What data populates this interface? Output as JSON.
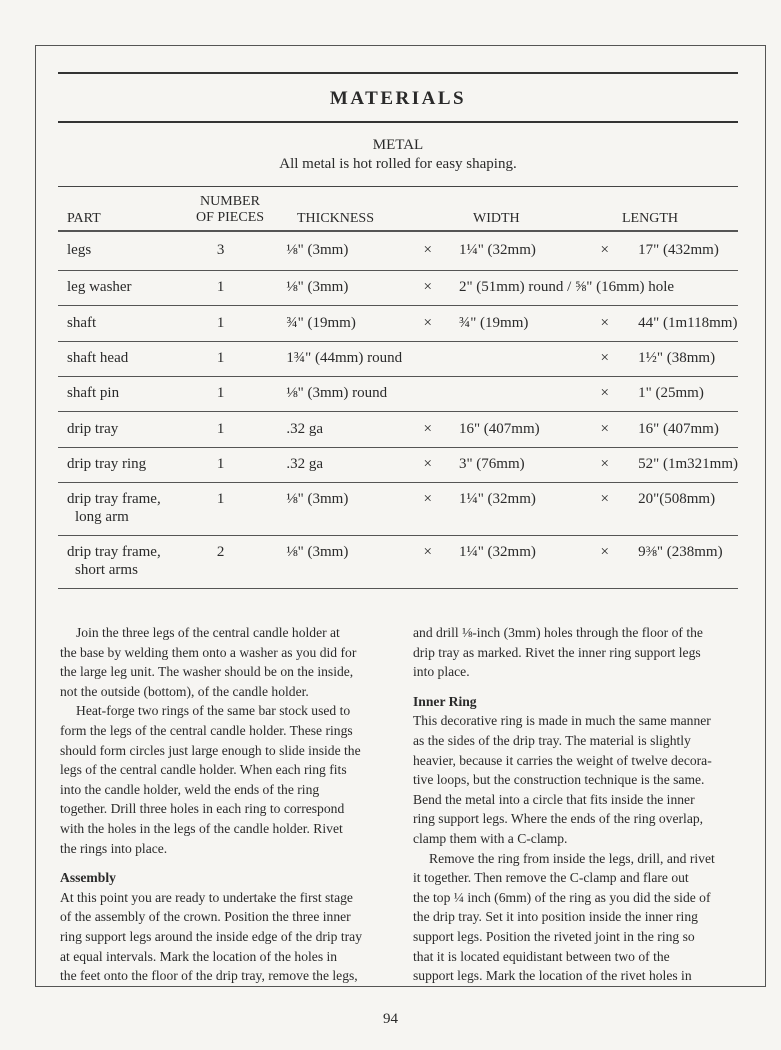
{
  "heading": "MATERIALS",
  "section": "METAL",
  "note": "All metal is hot rolled for easy shaping.",
  "columns": {
    "part": "PART",
    "pieces": [
      "NUMBER",
      "OF PIECES"
    ],
    "thickness": "THICKNESS",
    "width": "WIDTH",
    "length": "LENGTH"
  },
  "times_symbol": "×",
  "rows": [
    {
      "part": [
        "legs"
      ],
      "pieces": "3",
      "thickness": "⅛\" (3mm)",
      "x1": true,
      "width": "1¼\" (32mm)",
      "x2": true,
      "length": "17\" (432mm)"
    },
    {
      "part": [
        "leg washer"
      ],
      "pieces": "1",
      "thickness": "⅛\" (3mm)",
      "x1": true,
      "width": "2\" (51mm) round / ⅝\" (16mm) hole",
      "x2": false,
      "length": ""
    },
    {
      "part": [
        "shaft"
      ],
      "pieces": "1",
      "thickness": "¾\" (19mm)",
      "x1": true,
      "width": "¾\" (19mm)",
      "x2": true,
      "length": "44\" (1m118mm)"
    },
    {
      "part": [
        "shaft head"
      ],
      "pieces": "1",
      "thickness": "1¾\" (44mm) round",
      "x1": false,
      "width": "",
      "x2": true,
      "length": "1½\" (38mm)"
    },
    {
      "part": [
        "shaft pin"
      ],
      "pieces": "1",
      "thickness": "⅛\" (3mm) round",
      "x1": false,
      "width": "",
      "x2": true,
      "length": "1\" (25mm)"
    },
    {
      "part": [
        "drip tray"
      ],
      "pieces": "1",
      "thickness": ".32 ga",
      "x1": true,
      "width": "16\" (407mm)",
      "x2": true,
      "length": "16\" (407mm)"
    },
    {
      "part": [
        "drip tray ring"
      ],
      "pieces": "1",
      "thickness": ".32 ga",
      "x1": true,
      "width": "3\" (76mm)",
      "x2": true,
      "length": "52\" (1m321mm)"
    },
    {
      "part": [
        "drip tray frame,",
        "long arm"
      ],
      "pieces": "1",
      "thickness": "⅛\" (3mm)",
      "x1": true,
      "width": "1¼\" (32mm)",
      "x2": true,
      "length": "20\"(508mm)"
    },
    {
      "part": [
        "drip tray frame,",
        "short arms"
      ],
      "pieces": "2",
      "thickness": "⅛\" (3mm)",
      "x1": true,
      "width": "1¼\" (32mm)",
      "x2": true,
      "length": "9⅜\" (238mm)"
    }
  ],
  "left_column": [
    {
      "type": "p",
      "lines": [
        "Join the three legs of the central candle holder at",
        "the base by welding them onto a washer as you did for",
        "the large leg unit. The washer should be on the inside,",
        "not the outside (bottom), of the candle holder."
      ]
    },
    {
      "type": "p",
      "lines": [
        "Heat-forge two rings of the same bar stock used to",
        "form the legs of the central candle holder. These rings",
        "should form circles just large enough to slide inside the",
        "legs of the central candle holder. When each ring fits",
        "into the candle holder, weld the ends of the ring",
        "together. Drill three holes in each ring to correspond",
        "with the holes in the legs of the candle holder. Rivet",
        "the rings into place."
      ]
    },
    {
      "type": "h",
      "lines": [
        "Assembly"
      ]
    },
    {
      "type": "p0",
      "lines": [
        "At this point you are ready to undertake the first stage",
        "of the assembly of the crown. Position the three inner",
        "ring support legs around the inside edge of the drip tray",
        "at equal intervals. Mark the location of the holes in",
        "the feet onto the floor of the drip tray, remove the legs,"
      ]
    }
  ],
  "right_column": [
    {
      "type": "p0",
      "lines": [
        "and drill ⅛-inch (3mm) holes through the floor of the",
        "drip tray as marked. Rivet the inner ring support legs",
        "into place."
      ]
    },
    {
      "type": "h",
      "lines": [
        "Inner Ring"
      ]
    },
    {
      "type": "p0",
      "lines": [
        "This decorative ring is made in much the same manner",
        "as the sides of the drip tray. The material is slightly",
        "heavier, because it carries the weight of twelve decora-",
        "tive loops, but the construction technique is the same.",
        "Bend the metal into a circle that fits inside the inner",
        "ring support legs. Where the ends of the ring overlap,",
        "clamp them with a C-clamp."
      ]
    },
    {
      "type": "p",
      "lines": [
        "Remove the ring from inside the legs, drill, and rivet",
        "it together. Then remove the C-clamp and flare out",
        "the top ¼ inch (6mm) of the ring as you did the side of",
        "the drip tray. Set it into position inside the inner ring",
        "support legs. Position the riveted joint in the ring so",
        "that it is located equidistant between two of the",
        "support legs. Mark the location of the rivet holes in"
      ]
    }
  ],
  "page_number": "94"
}
